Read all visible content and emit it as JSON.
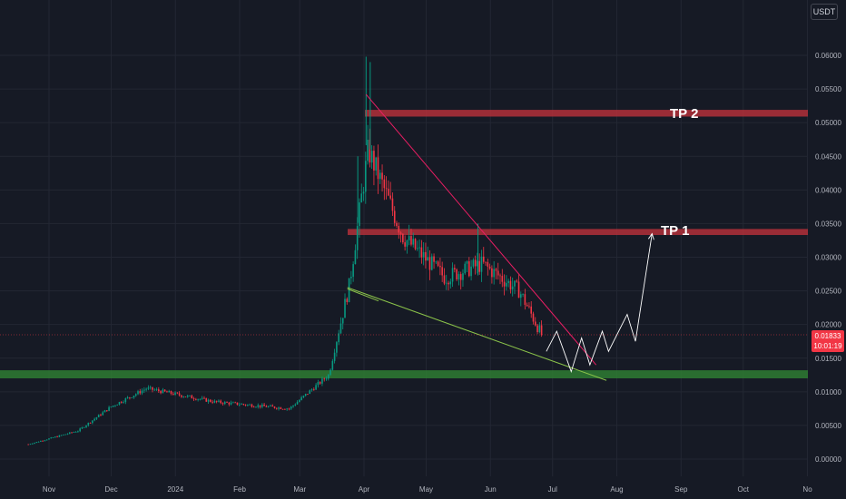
{
  "currency": "USDT",
  "last_price": {
    "value": "0.01833",
    "countdown": "10:01:19",
    "color": "#f23645"
  },
  "targets": [
    {
      "label": "TP 2",
      "price": 0.0514
    },
    {
      "label": "TP 1",
      "price": 0.0337
    }
  ],
  "colors": {
    "background": "#161a25",
    "grid": "#232733",
    "up": "#089981",
    "down": "#f23645",
    "zone_red": "#b2303a",
    "zone_green": "#2e7d32",
    "trend_upper": "#e91e63",
    "trend_lower": "#8bc34a",
    "projection": "#ffffff"
  },
  "chart_data": {
    "type": "candlestick",
    "x_labels": [
      "Nov",
      "Dec",
      "2024",
      "Feb",
      "Mar",
      "Apr",
      "May",
      "Jun",
      "Jul",
      "Aug",
      "Sep",
      "Oct",
      "No"
    ],
    "y_ticks": [
      "0.06000",
      "0.05500",
      "0.05000",
      "0.04500",
      "0.04000",
      "0.03500",
      "0.03000",
      "0.02500",
      "0.02000",
      "0.01500",
      "0.01000",
      "0.00500",
      "0.00000"
    ],
    "ylim": [
      -0.0005,
      0.0625
    ],
    "zones": [
      {
        "name": "tp2-zone",
        "low": 0.0509,
        "high": 0.0519,
        "color": "#b2303a"
      },
      {
        "name": "tp1-zone",
        "low": 0.0333,
        "high": 0.0342,
        "color": "#b2303a"
      },
      {
        "name": "support-zone",
        "low": 0.012,
        "high": 0.0132,
        "color": "#2e7d32"
      }
    ],
    "price_segments": [
      {
        "start": "2023-10-22",
        "end": "2023-11-15",
        "from": 0.0022,
        "to": 0.0042
      },
      {
        "start": "2023-11-15",
        "end": "2023-12-01",
        "from": 0.0042,
        "to": 0.0078
      },
      {
        "start": "2023-12-01",
        "end": "2023-12-18",
        "from": 0.0078,
        "to": 0.0105
      },
      {
        "start": "2023-12-18",
        "end": "2024-01-20",
        "from": 0.0105,
        "to": 0.0085
      },
      {
        "start": "2024-01-20",
        "end": "2024-02-25",
        "from": 0.0085,
        "to": 0.0075
      },
      {
        "start": "2024-02-25",
        "end": "2024-03-15",
        "from": 0.0075,
        "to": 0.0125
      },
      {
        "start": "2024-03-15",
        "end": "2024-03-25",
        "from": 0.0125,
        "to": 0.026
      },
      {
        "start": "2024-03-25",
        "end": "2024-04-03",
        "from": 0.026,
        "to": 0.046
      },
      {
        "start": "2024-04-03",
        "end": "2024-04-20",
        "from": 0.046,
        "to": 0.033
      },
      {
        "start": "2024-04-20",
        "end": "2024-05-10",
        "from": 0.033,
        "to": 0.027
      },
      {
        "start": "2024-05-10",
        "end": "2024-05-28",
        "from": 0.027,
        "to": 0.029
      },
      {
        "start": "2024-05-28",
        "end": "2024-06-15",
        "from": 0.029,
        "to": 0.025
      },
      {
        "start": "2024-06-15",
        "end": "2024-06-26",
        "from": 0.025,
        "to": 0.0183
      }
    ],
    "spikes": [
      {
        "date": "2024-03-29",
        "high": 0.045
      },
      {
        "date": "2024-04-02",
        "high": 0.0598
      },
      {
        "date": "2024-04-04",
        "high": 0.059
      },
      {
        "date": "2024-05-26",
        "high": 0.035
      }
    ],
    "trendlines": [
      {
        "name": "upper",
        "from": [
          "2024-04-02",
          0.0542
        ],
        "to": [
          "2024-07-22",
          0.014
        ],
        "color": "#e91e63"
      },
      {
        "name": "lower",
        "from": [
          "2024-03-24",
          0.0255
        ],
        "to": [
          "2024-07-27",
          0.0117
        ],
        "color": "#8bc34a"
      },
      {
        "name": "bottom",
        "from": [
          "2024-03-24",
          0.0253
        ],
        "to": [
          "2024-04-08",
          0.0235
        ],
        "color": "#8bc34a"
      }
    ],
    "projection": [
      [
        "2024-06-28",
        0.016
      ],
      [
        "2024-07-03",
        0.019
      ],
      [
        "2024-07-10",
        0.013
      ],
      [
        "2024-07-15",
        0.018
      ],
      [
        "2024-07-19",
        0.014
      ],
      [
        "2024-07-25",
        0.019
      ],
      [
        "2024-07-28",
        0.016
      ],
      [
        "2024-08-06",
        0.0215
      ],
      [
        "2024-08-10",
        0.0175
      ],
      [
        "2024-08-18",
        0.0335
      ]
    ]
  }
}
